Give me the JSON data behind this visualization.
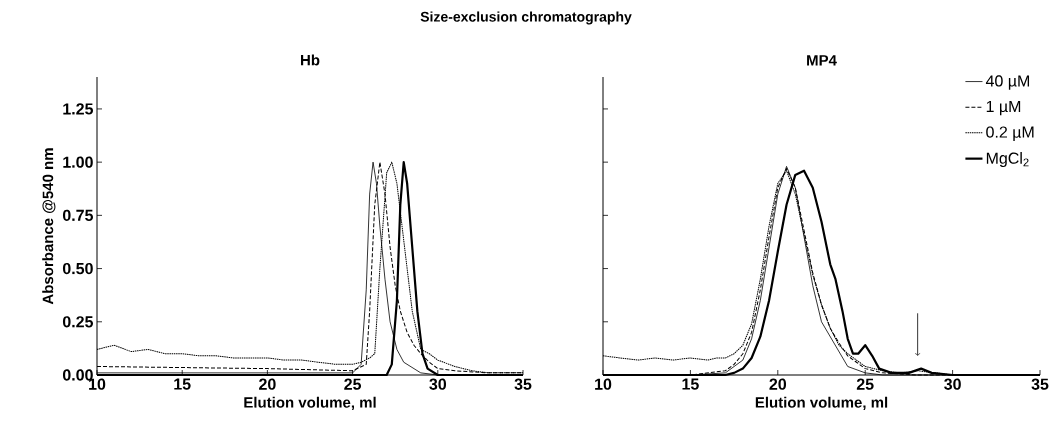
{
  "chart_data": [
    {
      "type": "line",
      "title": "Size-exclusion chromatography",
      "subtitle": "Hb",
      "xlabel": "Elution volume, ml",
      "ylabel": "Absorbance @540 nm",
      "xlim": [
        10,
        35
      ],
      "xticks": [
        10,
        15,
        20,
        25,
        30,
        35
      ],
      "ylim": [
        0,
        1.4
      ],
      "yticks": [
        {
          "value": 0,
          "label": "0.00"
        },
        0.25,
        {
          "value": 0.5,
          "label": "0.50"
        },
        0.75,
        {
          "value": 1,
          "label": "1.00"
        },
        1.25
      ],
      "legend": false,
      "series": [
        {
          "color": "#000000",
          "line_style": "solid",
          "x": [
            10,
            15,
            20,
            25,
            25.5,
            25.8,
            26.0,
            26.2,
            26.4,
            26.6,
            26.9,
            27.2,
            27.6,
            28.0,
            29,
            30,
            35
          ],
          "values": [
            0.01,
            0.01,
            0.01,
            0.01,
            0.05,
            0.4,
            0.85,
            1.0,
            0.9,
            0.7,
            0.45,
            0.25,
            0.12,
            0.06,
            0.01,
            0.0,
            0.0
          ]
        },
        {
          "color": "#000000",
          "line_style": "dashed",
          "x": [
            10,
            15,
            20,
            25,
            25.8,
            26.0,
            26.3,
            26.6,
            26.9,
            27.2,
            27.5,
            27.8,
            28.2,
            28.6,
            29.0,
            29.5,
            30,
            31,
            33,
            35
          ],
          "values": [
            0.04,
            0.035,
            0.03,
            0.02,
            0.05,
            0.3,
            0.8,
            1.0,
            0.85,
            0.6,
            0.42,
            0.3,
            0.2,
            0.14,
            0.1,
            0.06,
            0.03,
            0.02,
            0.01,
            0.01
          ]
        },
        {
          "color": "#000000",
          "line_style": "dotted",
          "x": [
            10,
            11,
            12,
            13,
            14,
            15,
            16,
            17,
            18,
            19,
            20,
            21,
            22,
            23,
            24,
            25,
            25.5,
            26.0,
            26.3,
            26.6,
            27.0,
            27.3,
            27.6,
            27.9,
            28.2,
            28.5,
            29,
            29.5,
            30,
            31,
            32,
            33,
            34,
            35
          ],
          "values": [
            0.12,
            0.14,
            0.11,
            0.12,
            0.1,
            0.1,
            0.09,
            0.09,
            0.08,
            0.08,
            0.08,
            0.07,
            0.07,
            0.06,
            0.05,
            0.05,
            0.06,
            0.08,
            0.1,
            0.5,
            0.95,
            1.0,
            0.9,
            0.7,
            0.5,
            0.3,
            0.12,
            0.1,
            0.07,
            0.04,
            0.02,
            0.01,
            0.01,
            0.01
          ]
        },
        {
          "color": "#000000",
          "line_style": "solid",
          "x": [
            10,
            20,
            27.0,
            27.3,
            27.6,
            27.8,
            28.0,
            28.2,
            28.5,
            28.8,
            29.1,
            29.4,
            30,
            35
          ],
          "values": [
            0,
            0,
            0.0,
            0.05,
            0.35,
            0.8,
            1.0,
            0.9,
            0.6,
            0.3,
            0.1,
            0.03,
            0.0,
            0.0
          ]
        }
      ]
    },
    {
      "type": "line",
      "title": "MP4",
      "xlabel": "Elution volume, ml",
      "xlim": [
        10,
        35
      ],
      "xticks": [
        10,
        15,
        20,
        25,
        30,
        35
      ],
      "ylim": [
        0,
        1.4
      ],
      "yticks": [
        {
          "value": 0,
          "label": null
        },
        {
          "value": 0.25,
          "label": null
        },
        {
          "value": 0.5,
          "label": null
        },
        {
          "value": 0.75,
          "label": null
        },
        {
          "value": 1,
          "label": null
        },
        {
          "value": 1.25,
          "label": null
        }
      ],
      "tick_labels": "x",
      "legend": "top right",
      "series": [
        {
          "name": "40 µM",
          "color": "#000000",
          "line_style": "solid",
          "x": [
            10,
            15,
            17,
            18,
            18.5,
            19,
            19.5,
            20,
            20.5,
            21,
            21.5,
            22,
            22.5,
            24,
            25,
            26,
            28,
            35
          ],
          "values": [
            0,
            0,
            0.01,
            0.07,
            0.17,
            0.35,
            0.6,
            0.85,
            0.98,
            0.88,
            0.65,
            0.42,
            0.25,
            0.04,
            0.01,
            0.0,
            0,
            0
          ]
        },
        {
          "name": "1 µM",
          "color": "#000000",
          "line_style": "dashed",
          "x": [
            10,
            15,
            17,
            17.5,
            18,
            18.5,
            19,
            19.5,
            20,
            20.5,
            21,
            21.5,
            22,
            22.5,
            23,
            23.5,
            24,
            24.5,
            25,
            26,
            28,
            35
          ],
          "values": [
            0.0,
            0.0,
            0.02,
            0.05,
            0.1,
            0.2,
            0.4,
            0.65,
            0.88,
            0.97,
            0.88,
            0.68,
            0.48,
            0.33,
            0.22,
            0.15,
            0.09,
            0.06,
            0.03,
            0.01,
            0.0,
            0.0
          ]
        },
        {
          "name": "0.2 µM",
          "color": "#000000",
          "line_style": "dotted",
          "x": [
            10,
            11,
            12,
            13,
            14,
            15,
            16,
            16.5,
            17,
            17.5,
            18,
            18.5,
            19,
            19.5,
            20,
            20.5,
            21,
            21.5,
            22,
            22.5,
            23,
            23.5,
            24,
            24.5,
            25,
            26,
            27,
            28,
            30,
            35
          ],
          "values": [
            0.09,
            0.08,
            0.07,
            0.08,
            0.07,
            0.08,
            0.07,
            0.08,
            0.08,
            0.1,
            0.14,
            0.24,
            0.45,
            0.7,
            0.9,
            0.96,
            0.85,
            0.66,
            0.47,
            0.33,
            0.22,
            0.14,
            0.1,
            0.07,
            0.04,
            0.02,
            0.01,
            0.02,
            0.0,
            0.0
          ]
        },
        {
          "name": "MgCl$_{2}$",
          "color": "#000000",
          "line_style": "solid",
          "x": [
            10,
            15,
            17,
            17.5,
            18,
            18.5,
            19,
            19.5,
            20,
            20.5,
            21,
            21.5,
            22,
            22.5,
            23,
            23.3,
            23.7,
            24,
            24.3,
            24.6,
            25,
            25.4,
            25.8,
            26.5,
            27.5,
            28.2,
            28.8,
            30,
            35
          ],
          "values": [
            0,
            0,
            0,
            0.01,
            0.03,
            0.08,
            0.18,
            0.35,
            0.58,
            0.8,
            0.94,
            0.96,
            0.88,
            0.72,
            0.52,
            0.45,
            0.3,
            0.17,
            0.1,
            0.1,
            0.14,
            0.09,
            0.03,
            0.01,
            0.01,
            0.03,
            0.01,
            0,
            0
          ]
        }
      ]
    }
  ]
}
